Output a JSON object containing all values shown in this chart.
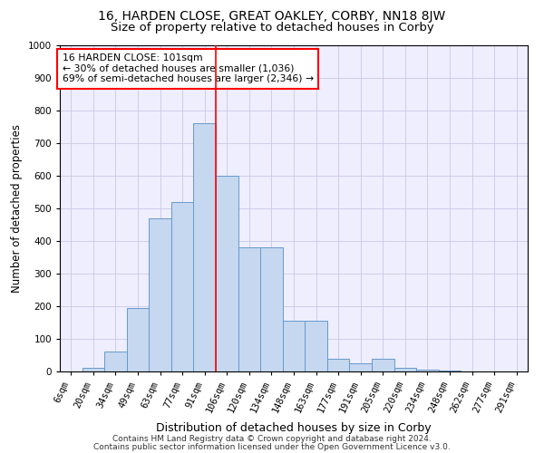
{
  "title1": "16, HARDEN CLOSE, GREAT OAKLEY, CORBY, NN18 8JW",
  "title2": "Size of property relative to detached houses in Corby",
  "xlabel": "Distribution of detached houses by size in Corby",
  "ylabel": "Number of detached properties",
  "annotation_line1": "16 HARDEN CLOSE: 101sqm",
  "annotation_line2": "← 30% of detached houses are smaller (1,036)",
  "annotation_line3": "69% of semi-detached houses are larger (2,346) →",
  "bar_labels": [
    "6sqm",
    "20sqm",
    "34sqm",
    "49sqm",
    "63sqm",
    "77sqm",
    "91sqm",
    "106sqm",
    "120sqm",
    "134sqm",
    "148sqm",
    "163sqm",
    "177sqm",
    "191sqm",
    "205sqm",
    "220sqm",
    "234sqm",
    "248sqm",
    "262sqm",
    "277sqm",
    "291sqm"
  ],
  "bar_values": [
    0,
    10,
    60,
    195,
    470,
    520,
    760,
    600,
    380,
    380,
    155,
    155,
    40,
    25,
    40,
    10,
    5,
    2,
    1,
    0,
    0
  ],
  "bar_color": "#c5d8f0",
  "bar_edge_color": "#6699cc",
  "bar_width": 1.0,
  "red_line_index": 6.5,
  "ylim": [
    0,
    1000
  ],
  "yticks": [
    0,
    100,
    200,
    300,
    400,
    500,
    600,
    700,
    800,
    900,
    1000
  ],
  "grid_color": "#c8c8e8",
  "background_color": "#eeeeff",
  "footer_line1": "Contains HM Land Registry data © Crown copyright and database right 2024.",
  "footer_line2": "Contains public sector information licensed under the Open Government Licence v3.0.",
  "title1_fontsize": 10,
  "title2_fontsize": 9.5,
  "xlabel_fontsize": 9,
  "ylabel_fontsize": 8.5,
  "tick_fontsize": 7.5,
  "annotation_fontsize": 7.8,
  "footer_fontsize": 6.5
}
